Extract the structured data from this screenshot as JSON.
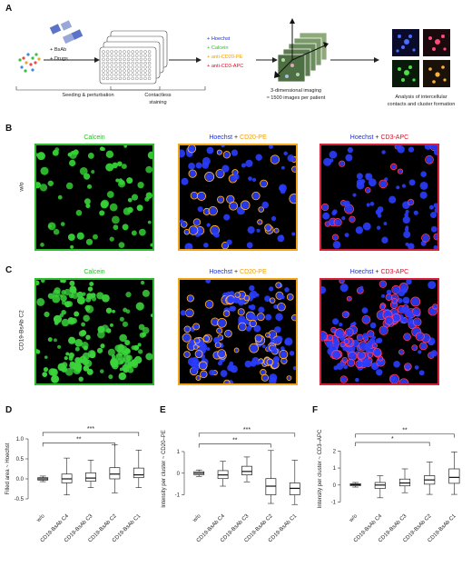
{
  "panelA": {
    "label": "A",
    "reagents": [
      "+ BsAb",
      "+ Drugs"
    ],
    "step1": "Seeding & perturbation",
    "step2": [
      "Contactless",
      "staining"
    ],
    "stains": [
      {
        "text": "+ Hoechst",
        "color": "#1a2fd4"
      },
      {
        "text": "+ Calcein",
        "color": "#22c322"
      },
      {
        "text": "+ anti-CD20-PE",
        "color": "#f0a000"
      },
      {
        "text": "+ anti-CD3-APC",
        "color": "#d8102a"
      }
    ],
    "step3": [
      "3-dimensional imaging",
      "≈ 1500 images per patient"
    ],
    "step4": [
      "Analysis of intercellular",
      "contacts and cluster formation"
    ]
  },
  "panelB": {
    "label": "B",
    "rowlabel": "w/o",
    "titles": [
      {
        "parts": [
          {
            "text": "Calcein",
            "color": "#22c322"
          }
        ]
      },
      {
        "parts": [
          {
            "text": "Hoechst",
            "color": "#1a2fd4"
          },
          {
            "text": " + ",
            "color": "#222222"
          },
          {
            "text": "CD20-PE",
            "color": "#f0a000"
          }
        ]
      },
      {
        "parts": [
          {
            "text": "Hoechst",
            "color": "#1a2fd4"
          },
          {
            "text": " + ",
            "color": "#222222"
          },
          {
            "text": "CD3-APC",
            "color": "#d8102a"
          }
        ]
      }
    ]
  },
  "panelC": {
    "label": "C",
    "rowlabel": "CD19-BsAb C2"
  },
  "colors": {
    "calcein": "#22c322",
    "hoechst": "#1a2fd4",
    "cd20": "#f0a000",
    "cd3": "#d8102a",
    "frame_green": "#2dbb2d",
    "frame_orange": "#f2a51a",
    "frame_red": "#d6213a"
  },
  "chart_data": [
    {
      "panel": "D",
      "type": "box",
      "ylabel": "Filled area ~ Hoechst",
      "categories": [
        "w/o",
        "CD19-BsAb C4",
        "CD19-BsAb C3",
        "CD19-BsAb C2",
        "CD19-BsAb C1"
      ],
      "yticks": [
        "-0.5",
        "0.0",
        "0.5",
        "1.0"
      ],
      "ylim": [
        -0.75,
        1.25
      ],
      "boxes": [
        {
          "min": -0.07,
          "q1": -0.03,
          "median": 0.0,
          "q3": 0.03,
          "max": 0.07
        },
        {
          "min": -0.4,
          "q1": -0.1,
          "median": 0.0,
          "q3": 0.12,
          "max": 0.52
        },
        {
          "min": -0.22,
          "q1": -0.06,
          "median": 0.02,
          "q3": 0.15,
          "max": 0.47
        },
        {
          "min": -0.35,
          "q1": 0.0,
          "median": 0.12,
          "q3": 0.28,
          "max": 0.85
        },
        {
          "min": -0.22,
          "q1": 0.03,
          "median": 0.1,
          "q3": 0.27,
          "max": 0.72
        }
      ],
      "brackets": [
        {
          "from": 0,
          "to": 4,
          "y": 1.16,
          "text": "***"
        },
        {
          "from": 0,
          "to": 3,
          "y": 0.9,
          "text": "**"
        }
      ]
    },
    {
      "panel": "E",
      "type": "box",
      "ylabel": "Intensity per cluster ~ CD20–PE",
      "categories": [
        "w/o",
        "CD19-BsAb C4",
        "CD19-BsAb C3",
        "CD19-BsAb C2",
        "CD19-BsAb C1"
      ],
      "yticks": [
        "-1",
        "0",
        "1"
      ],
      "ylim": [
        -1.65,
        2.05
      ],
      "boxes": [
        {
          "min": -0.15,
          "q1": -0.07,
          "median": 0.0,
          "q3": 0.07,
          "max": 0.15
        },
        {
          "min": -0.6,
          "q1": -0.25,
          "median": -0.08,
          "q3": 0.12,
          "max": 0.55
        },
        {
          "min": -0.4,
          "q1": -0.08,
          "median": 0.08,
          "q3": 0.32,
          "max": 0.75
        },
        {
          "min": -1.4,
          "q1": -1.0,
          "median": -0.6,
          "q3": -0.25,
          "max": 1.05
        },
        {
          "min": -1.45,
          "q1": -1.0,
          "median": -0.7,
          "q3": -0.45,
          "max": 0.6
        }
      ],
      "brackets": [
        {
          "from": 0,
          "to": 4,
          "y": 1.85,
          "text": "***"
        },
        {
          "from": 0,
          "to": 3,
          "y": 1.35,
          "text": "**"
        }
      ]
    },
    {
      "panel": "F",
      "type": "box",
      "ylabel": "Intensity per cluster ~ CD3–APC",
      "categories": [
        "w/o",
        "CD19-BsAb C4",
        "CD19-BsAb C3",
        "CD19-BsAb C2",
        "CD19-BsAb C1"
      ],
      "yticks": [
        "-1",
        "0",
        "1",
        "2"
      ],
      "ylim": [
        -1.4,
        3.3
      ],
      "boxes": [
        {
          "min": -0.12,
          "q1": -0.04,
          "median": 0.02,
          "q3": 0.08,
          "max": 0.15
        },
        {
          "min": -0.75,
          "q1": -0.2,
          "median": 0.0,
          "q3": 0.15,
          "max": 0.55
        },
        {
          "min": -0.45,
          "q1": -0.05,
          "median": 0.12,
          "q3": 0.35,
          "max": 0.95
        },
        {
          "min": -0.55,
          "q1": 0.05,
          "median": 0.3,
          "q3": 0.55,
          "max": 1.35
        },
        {
          "min": -0.55,
          "q1": 0.1,
          "median": 0.45,
          "q3": 0.95,
          "max": 1.95
        }
      ],
      "brackets": [
        {
          "from": 0,
          "to": 4,
          "y": 3.0,
          "text": "**"
        },
        {
          "from": 0,
          "to": 3,
          "y": 2.5,
          "text": "*"
        }
      ]
    }
  ]
}
